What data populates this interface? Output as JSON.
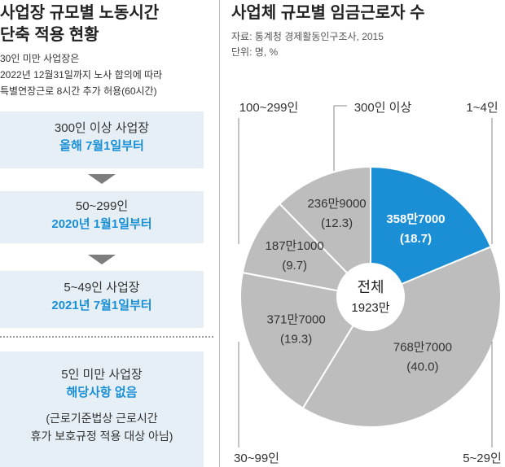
{
  "left": {
    "title_line1": "사업장 규모별 노동시간",
    "title_line2": "단축 적용 현황",
    "notes": [
      "30인 미만 사업장은",
      "2022년 12월31일까지 노사 합의에 따라",
      "특별연장근로 8시간 추가 허용(60시간)"
    ],
    "steps": [
      {
        "line1": "300인 이상 사업장",
        "line2": "올해 7월1일부터"
      },
      {
        "line1": "50~299인",
        "line2": "2020년 1월1일부터"
      },
      {
        "line1": "5~49인 사업장",
        "line2": "2021년 7월1일부터"
      }
    ],
    "exception": {
      "line1": "5인 미만 사업장",
      "line2": "해당사항 없음",
      "line3": "(근로기준법상 근로시간",
      "line4": "휴가 보호규정 적용 대상 아님)"
    },
    "colors": {
      "box": "#e6eff6",
      "accent": "#1a8fd6",
      "arrow": "#7d7d7d"
    }
  },
  "chart_data": {
    "type": "pie",
    "title": "사업체 규모별 임금근로자 수",
    "source": "자료: 통계청 경제활동인구조사, 2015",
    "unit": "단위: 명, %",
    "total_label": "전체",
    "total_value": "1923만",
    "slices": [
      {
        "name": "1~4인",
        "value_label": "358만7000",
        "percent": 18.7,
        "percent_label": "(18.7)",
        "color": "#1a8fd6",
        "highlight": true
      },
      {
        "name": "5~29인",
        "value_label": "768만7000",
        "percent": 40.0,
        "percent_label": "(40.0)",
        "color": "#bdbdbd"
      },
      {
        "name": "30~99인",
        "value_label": "371만7000",
        "percent": 19.3,
        "percent_label": "(19.3)",
        "color": "#bdbdbd"
      },
      {
        "name": "100~299인",
        "value_label": "187만1000",
        "percent": 9.7,
        "percent_label": "(9.7)",
        "color": "#bdbdbd"
      },
      {
        "name": "300인 이상",
        "value_label": "236만9000",
        "percent": 12.3,
        "percent_label": "(12.3)",
        "color": "#bdbdbd"
      }
    ]
  }
}
